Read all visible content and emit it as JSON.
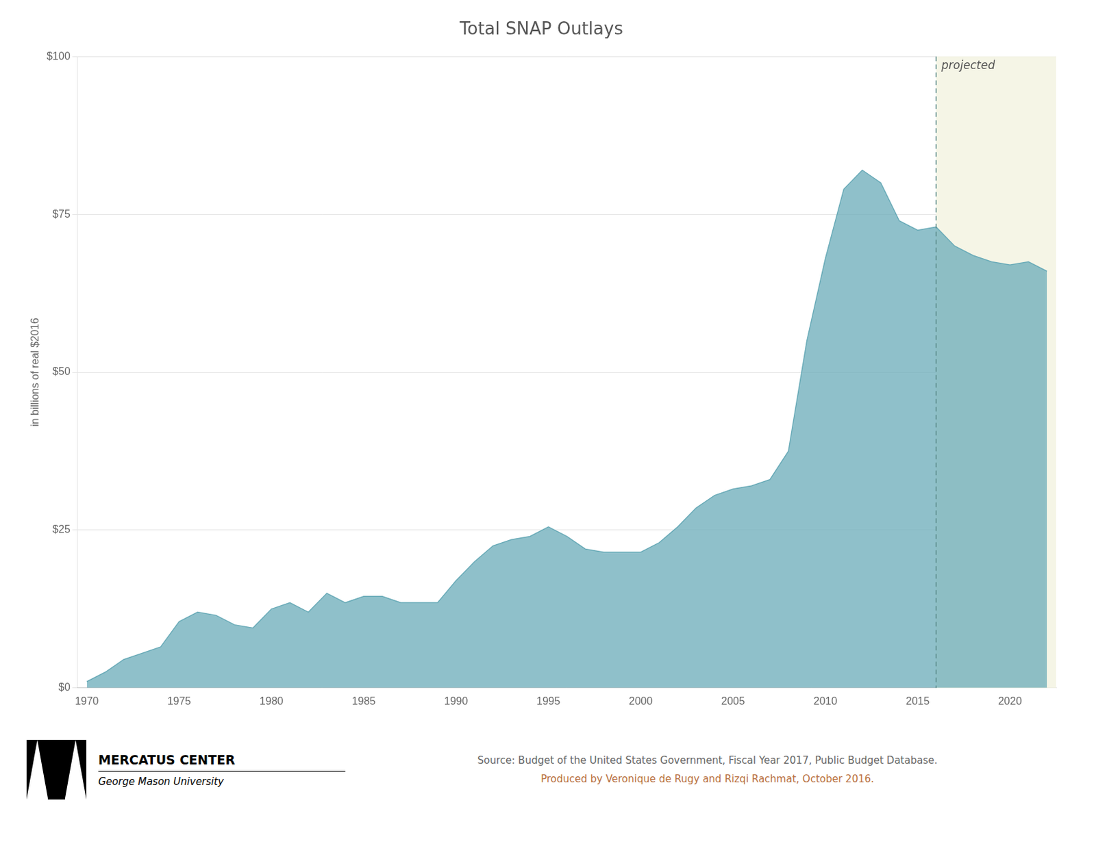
{
  "chart_data": {
    "type": "area",
    "title": "Total SNAP Outlays",
    "ylabel": "in billions of real $2016",
    "x": [
      1970,
      1971,
      1972,
      1973,
      1974,
      1975,
      1976,
      1977,
      1978,
      1979,
      1980,
      1981,
      1982,
      1983,
      1984,
      1985,
      1986,
      1987,
      1988,
      1989,
      1990,
      1991,
      1992,
      1993,
      1994,
      1995,
      1996,
      1997,
      1998,
      1999,
      2000,
      2001,
      2002,
      2003,
      2004,
      2005,
      2006,
      2007,
      2008,
      2009,
      2010,
      2011,
      2012,
      2013,
      2014,
      2015,
      2016,
      2017,
      2018,
      2019,
      2020,
      2021,
      2022
    ],
    "values": [
      1.0,
      2.5,
      4.5,
      5.5,
      6.5,
      10.5,
      12.0,
      11.5,
      10.0,
      9.5,
      12.5,
      13.5,
      12.0,
      15.0,
      13.5,
      14.5,
      14.5,
      13.5,
      13.5,
      13.5,
      17.0,
      20.0,
      22.5,
      23.5,
      24.0,
      25.5,
      24.0,
      22.0,
      21.5,
      21.5,
      21.5,
      23.0,
      25.5,
      28.5,
      30.5,
      31.5,
      32.0,
      33.0,
      37.5,
      55.0,
      68.0,
      79.0,
      82.0,
      80.0,
      74.0,
      72.5,
      73.0,
      70.0,
      68.5,
      67.5,
      67.0,
      67.5,
      66.0
    ],
    "color": "#6aabb8",
    "xlim": [
      1969.5,
      2022.5
    ],
    "xticks": [
      1970,
      1975,
      1980,
      1985,
      1990,
      1995,
      2000,
      2005,
      2010,
      2015,
      2020
    ],
    "ylim": [
      0,
      100
    ],
    "yticks": [
      {
        "value": 0,
        "label": "$0"
      },
      {
        "value": 25,
        "label": "$25"
      },
      {
        "value": 50,
        "label": "$50"
      },
      {
        "value": 75,
        "label": "$75"
      },
      {
        "value": 100,
        "label": "$100"
      }
    ],
    "grid": "y",
    "annotations": [
      {
        "x": 2016,
        "text": "projected"
      }
    ],
    "source_lines": [
      "Source: Budget of the United States Government, Fiscal Year 2017, Public Budget Database.",
      "Produced by Veronique de Rugy and Rizqi Rachmat, October 2016."
    ],
    "logo_lines": [
      "MERCATUS CENTER",
      "George Mason University"
    ]
  }
}
